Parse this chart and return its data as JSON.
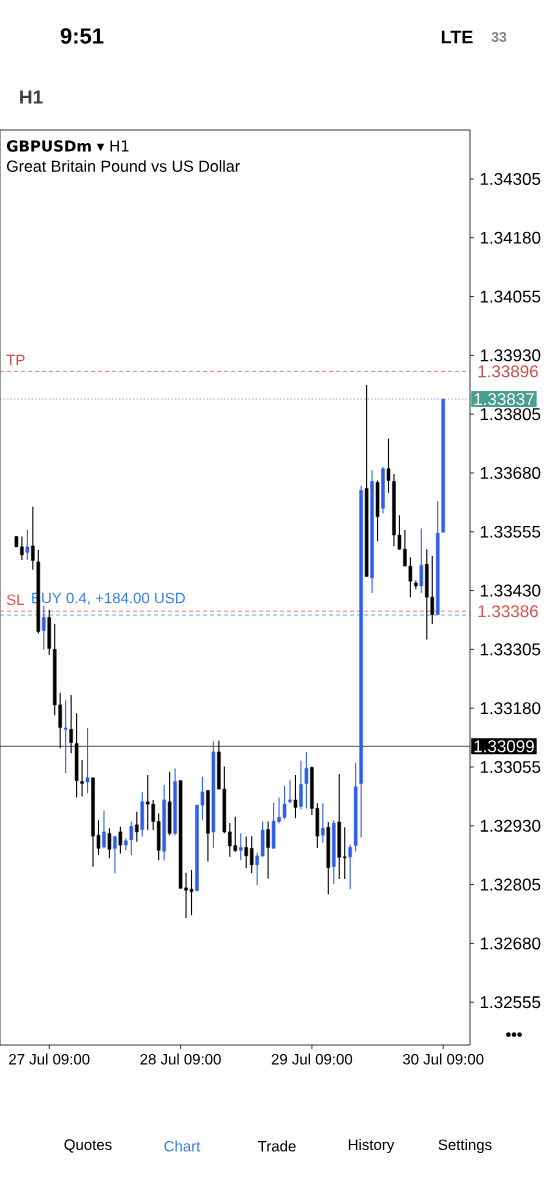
{
  "chart_data": {
    "type": "candlestick",
    "title": "**GBPUSDm** ▾ H1",
    "subtitle": "Great Britain Pound vs US Dollar",
    "categories": [
      null,
      null,
      null,
      null,
      null,
      null,
      "27 Jul 09:00",
      null,
      null,
      null,
      null,
      null,
      null,
      null,
      null,
      null,
      null,
      null,
      null,
      null,
      null,
      null,
      null,
      null,
      null,
      null,
      null,
      null,
      null,
      null,
      "28 Jul 09:00",
      null,
      null,
      null,
      null,
      null,
      null,
      null,
      null,
      null,
      null,
      null,
      null,
      null,
      null,
      null,
      null,
      null,
      null,
      null,
      null,
      null,
      null,
      null,
      "29 Jul 09:00",
      null,
      null,
      null,
      null,
      null,
      null,
      null,
      null,
      null,
      null,
      null,
      null,
      null,
      null,
      null,
      null,
      null,
      null,
      null,
      null,
      null,
      null,
      null,
      "30 Jul 09:00"
    ],
    "ohlc": [
      [
        1.33545,
        1.33545,
        1.33523,
        1.33523
      ],
      [
        1.33523,
        1.33545,
        1.33495,
        1.33506
      ],
      [
        1.33511,
        1.3356,
        1.33495,
        1.33523
      ],
      [
        1.33525,
        1.33608,
        1.33474,
        1.33494
      ],
      [
        1.33491,
        1.33516,
        1.33339,
        1.33343
      ],
      [
        1.33345,
        1.33397,
        1.33304,
        1.33373
      ],
      [
        1.33373,
        1.33389,
        1.33293,
        1.33307
      ],
      [
        1.33305,
        1.33359,
        1.33165,
        1.33187
      ],
      [
        1.33187,
        1.33213,
        1.33095,
        1.33139
      ],
      [
        1.33135,
        1.33197,
        1.33042,
        1.33138
      ],
      [
        1.33135,
        1.33208,
        1.33084,
        1.33107
      ],
      [
        1.33105,
        1.33169,
        1.3299,
        1.33026
      ],
      [
        1.33024,
        1.3307,
        1.32992,
        1.3302
      ],
      [
        1.33023,
        1.33138,
        1.32999,
        1.33032
      ],
      [
        1.33032,
        1.33032,
        1.32843,
        1.32908
      ],
      [
        1.3291,
        1.32942,
        1.32868,
        1.32882
      ],
      [
        1.32885,
        1.32962,
        1.32882,
        1.32917
      ],
      [
        1.32914,
        1.32925,
        1.32861,
        1.3288
      ],
      [
        1.32882,
        1.32907,
        1.32829,
        1.32907
      ],
      [
        1.32917,
        1.32928,
        1.32871,
        1.32889
      ],
      [
        1.32889,
        1.32903,
        1.32878,
        1.32898
      ],
      [
        1.329,
        1.32939,
        1.32868,
        1.32929
      ],
      [
        1.32932,
        1.3296,
        1.32896,
        1.32917
      ],
      [
        1.32922,
        1.33002,
        1.32907,
        1.32981
      ],
      [
        1.32981,
        1.33038,
        1.32921,
        1.32976
      ],
      [
        1.32976,
        1.32985,
        1.32921,
        1.32939
      ],
      [
        1.32939,
        1.32956,
        1.32857,
        1.32878
      ],
      [
        1.32876,
        1.33017,
        1.32857,
        1.32985
      ],
      [
        1.32981,
        1.33045,
        1.3291,
        1.32914
      ],
      [
        1.32914,
        1.33052,
        1.3291,
        1.33024
      ],
      [
        1.33026,
        1.33026,
        1.32797,
        1.32797
      ],
      [
        1.32798,
        1.3283,
        1.32734,
        1.32793
      ],
      [
        1.32795,
        1.32836,
        1.3274,
        1.3279
      ],
      [
        1.32792,
        1.32974,
        1.32792,
        1.32974
      ],
      [
        1.32974,
        1.33034,
        1.32942,
        1.33002
      ],
      [
        1.33005,
        1.33005,
        1.32854,
        1.32914
      ],
      [
        1.32917,
        1.33109,
        1.32882,
        1.33087
      ],
      [
        1.33087,
        1.33111,
        1.33008,
        1.33008
      ],
      [
        1.33008,
        1.33056,
        1.32914,
        1.32917
      ],
      [
        1.32917,
        1.32936,
        1.32864,
        1.32887
      ],
      [
        1.32888,
        1.32949,
        1.32875,
        1.32877
      ],
      [
        1.32878,
        1.32914,
        1.32857,
        1.32884
      ],
      [
        1.32884,
        1.32907,
        1.3284,
        1.32866
      ],
      [
        1.32882,
        1.32908,
        1.32829,
        1.32847
      ],
      [
        1.32847,
        1.32873,
        1.32804,
        1.32866
      ],
      [
        1.32866,
        1.32939,
        1.32864,
        1.32921
      ],
      [
        1.32922,
        1.32939,
        1.32818,
        1.32884
      ],
      [
        1.32882,
        1.32979,
        1.32882,
        1.3294
      ],
      [
        1.32939,
        1.3299,
        1.32935,
        1.32948
      ],
      [
        1.32948,
        1.33015,
        1.32944,
        1.32976
      ],
      [
        1.32981,
        1.33027,
        1.32978,
        1.32985
      ],
      [
        1.32985,
        1.33038,
        1.32946,
        1.32969
      ],
      [
        1.32971,
        1.33068,
        1.32965,
        1.33018
      ],
      [
        1.3302,
        1.33087,
        1.32967,
        1.33052
      ],
      [
        1.33054,
        1.33056,
        1.32953,
        1.32967
      ],
      [
        1.32967,
        1.32978,
        1.32883,
        1.32908
      ],
      [
        1.3291,
        1.32978,
        1.32894,
        1.32925
      ],
      [
        1.32927,
        1.32938,
        1.32784,
        1.32841
      ],
      [
        1.32843,
        1.32942,
        1.32806,
        1.32936
      ],
      [
        1.32938,
        1.3304,
        1.32817,
        1.32863
      ],
      [
        1.32864,
        1.32927,
        1.32817,
        1.32862
      ],
      [
        1.32864,
        1.3289,
        1.32795,
        1.32884
      ],
      [
        1.32888,
        1.33064,
        1.32875,
        1.33013
      ],
      [
        1.3302,
        1.33653,
        1.32905,
        1.33643
      ],
      [
        1.33647,
        1.33867,
        1.3346,
        1.3346
      ],
      [
        1.33457,
        1.33686,
        1.33425,
        1.33662
      ],
      [
        1.3366,
        1.33664,
        1.33535,
        1.33587
      ],
      [
        1.33605,
        1.33693,
        1.33594,
        1.33689
      ],
      [
        1.33689,
        1.33753,
        1.33638,
        1.33664
      ],
      [
        1.33662,
        1.33678,
        1.33524,
        1.33548
      ],
      [
        1.33548,
        1.3359,
        1.33517,
        1.33518
      ],
      [
        1.33518,
        1.33559,
        1.33482,
        1.33482
      ],
      [
        1.33482,
        1.33501,
        1.33416,
        1.3345
      ],
      [
        1.33446,
        1.33451,
        1.33433,
        1.3344
      ],
      [
        1.3344,
        1.33562,
        1.33425,
        1.33484
      ],
      [
        1.33486,
        1.33518,
        1.33326,
        1.33416
      ],
      [
        1.33416,
        1.33504,
        1.33359,
        1.33379
      ],
      [
        1.33379,
        1.3362,
        1.33379,
        1.33552
      ],
      [
        1.33554,
        1.33837,
        1.33554,
        1.33837
      ]
    ],
    "colors": [
      "#000000",
      "#000000",
      "#2f5fe6",
      "#000000",
      "#000000",
      "#2f5fe6",
      "#000000",
      "#000000",
      "#000000",
      "#2f5fe6",
      "#000000",
      "#000000",
      "#000000",
      "#2f5fe6",
      "#000000",
      "#000000",
      "#2f5fe6",
      "#000000",
      "#2f5fe6",
      "#000000",
      "#2f5fe6",
      "#2f5fe6",
      "#000000",
      "#2f5fe6",
      "#000000",
      "#000000",
      "#000000",
      "#2f5fe6",
      "#000000",
      "#2f5fe6",
      "#000000",
      "#000000",
      "#000000",
      "#2f5fe6",
      "#2f5fe6",
      "#000000",
      "#2f5fe6",
      "#000000",
      "#000000",
      "#000000",
      "#000000",
      "#2f5fe6",
      "#000000",
      "#000000",
      "#2f5fe6",
      "#2f5fe6",
      "#000000",
      "#2f5fe6",
      "#2f5fe6",
      "#2f5fe6",
      "#2f5fe6",
      "#000000",
      "#2f5fe6",
      "#2f5fe6",
      "#000000",
      "#000000",
      "#2f5fe6",
      "#000000",
      "#2f5fe6",
      "#000000",
      "#000000",
      "#2f5fe6",
      "#2f5fe6",
      "#2f5fe6",
      "#000000",
      "#2f5fe6",
      "#000000",
      "#2f5fe6",
      "#000000",
      "#000000",
      "#000000",
      "#000000",
      "#000000",
      "#000000",
      "#2f5fe6",
      "#000000",
      "#000000",
      "#2f5fe6",
      "#2f5fe6"
    ],
    "ylim": [
      1.32464,
      1.34409
    ],
    "yticks": [
      {
        "value": 1.34305,
        "label": "1.34305"
      },
      {
        "value": 1.3418,
        "label": "1.34180"
      },
      {
        "value": 1.34055,
        "label": "1.34055"
      },
      {
        "value": 1.3393,
        "label": "1.33930"
      },
      {
        "value": 1.33805,
        "label": "1.33805"
      },
      {
        "value": 1.3368,
        "label": "1.33680"
      },
      {
        "value": 1.33555,
        "label": "1.33555"
      },
      {
        "value": 1.3343,
        "label": "1.33430"
      },
      {
        "value": 1.33305,
        "label": "1.33305"
      },
      {
        "value": 1.3318,
        "label": "1.33180"
      },
      {
        "value": 1.33055,
        "label": "1.33055"
      },
      {
        "value": 1.3293,
        "label": "1.32930"
      },
      {
        "value": 1.32805,
        "label": "1.32805"
      },
      {
        "value": 1.3268,
        "label": "1.32680"
      },
      {
        "value": 1.32555,
        "label": "1.32555"
      }
    ],
    "ref_lines": [
      {
        "axis": "y",
        "value": 1.33896,
        "label": "TP",
        "color": "#c8504a",
        "line_style": "dashed"
      },
      {
        "axis": "y",
        "value": 1.33837,
        "label": null,
        "color": "#4a9e8f",
        "line_style": "dotted"
      },
      {
        "axis": "y",
        "value": 1.33386,
        "label": "SL",
        "color": "#d9534f",
        "line_style": "dashed"
      },
      {
        "axis": "y",
        "value": 1.33378,
        "label": "BUY 0.4, +184.00 USD",
        "color": "#3d7fe0",
        "line_style": "dashed"
      },
      {
        "axis": "y",
        "value": 1.33099,
        "label": null,
        "color": "#000000",
        "line_style": "solid"
      }
    ],
    "annotations": [
      "9:51",
      "LTE",
      "33",
      "H1",
      "•••",
      "Quotes",
      "Chart",
      "Trade",
      "History",
      "Settings",
      "1.33896",
      "1.33837",
      "1.33386",
      "1.33099"
    ]
  }
}
